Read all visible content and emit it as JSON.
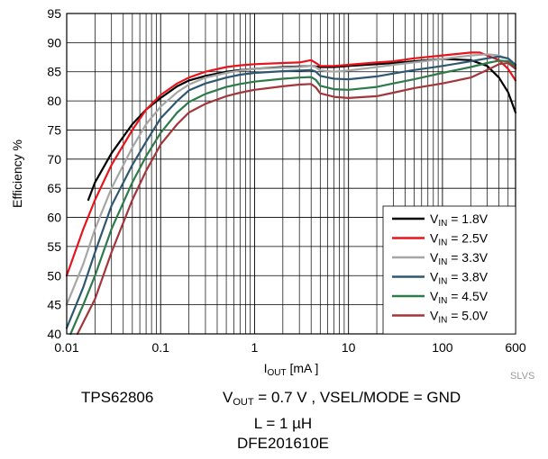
{
  "chart_data": {
    "type": "line",
    "xscale": "log",
    "xlim": [
      0.01,
      600
    ],
    "ylim": [
      40,
      95
    ],
    "grid": true,
    "legend_position": "bottom-right",
    "xlabel": {
      "main": "I",
      "sub": "OUT",
      "rest": " [mA ]"
    },
    "ylabel": "Efficiency %",
    "x_ticks": [
      {
        "value": 0.01,
        "label": "0.01"
      },
      {
        "value": 0.1,
        "label": "0.1"
      },
      {
        "value": 1,
        "label": "1"
      },
      {
        "value": 10,
        "label": "10"
      },
      {
        "value": 100,
        "label": "100"
      },
      {
        "value": 600,
        "label": "600"
      }
    ],
    "y_ticks": [
      40,
      45,
      50,
      55,
      60,
      65,
      70,
      75,
      80,
      85,
      90,
      95
    ],
    "series": [
      {
        "name": "1.8V",
        "label_main": "V",
        "label_sub": "IN",
        "label_rest": " = 1.8V",
        "color": "#000000",
        "x": [
          0.017,
          0.02,
          0.03,
          0.05,
          0.07,
          0.1,
          0.15,
          0.2,
          0.3,
          0.5,
          0.7,
          1,
          2,
          3,
          4,
          4.5,
          5,
          7,
          10,
          20,
          30,
          50,
          100,
          200,
          300,
          400,
          500,
          600
        ],
        "y": [
          63,
          66,
          71,
          76,
          78.5,
          80.5,
          82.5,
          83.5,
          84.3,
          85,
          85.3,
          85.5,
          85.8,
          85.9,
          86,
          85.9,
          85.8,
          85.8,
          86,
          86.3,
          86.5,
          86.8,
          87.2,
          87,
          86,
          84,
          81.5,
          78
        ]
      },
      {
        "name": "2.5V",
        "label_main": "V",
        "label_sub": "IN",
        "label_rest": " = 2.5V",
        "color": "#e8141c",
        "x": [
          0.01,
          0.015,
          0.02,
          0.03,
          0.05,
          0.07,
          0.1,
          0.15,
          0.2,
          0.3,
          0.5,
          0.7,
          1,
          2,
          3,
          4,
          4.5,
          5,
          7,
          10,
          20,
          30,
          50,
          100,
          200,
          250,
          300,
          400,
          500,
          600
        ],
        "y": [
          50,
          58,
          63,
          69,
          75,
          78.5,
          81,
          83,
          84,
          85,
          85.8,
          86.1,
          86.3,
          86.5,
          86.6,
          87,
          86.5,
          86,
          86,
          86.2,
          86.6,
          86.8,
          87.3,
          87.8,
          88.3,
          88.3,
          87.8,
          87,
          85.5,
          83.5
        ]
      },
      {
        "name": "3.3V",
        "label_main": "V",
        "label_sub": "IN",
        "label_rest": " = 3.3V",
        "color": "#a6a6a6",
        "x": [
          0.01,
          0.015,
          0.02,
          0.03,
          0.05,
          0.07,
          0.1,
          0.15,
          0.2,
          0.3,
          0.5,
          0.7,
          1,
          2,
          3,
          4,
          4.5,
          5,
          7,
          10,
          20,
          30,
          50,
          100,
          200,
          300,
          400,
          500,
          600
        ],
        "y": [
          45,
          52,
          58,
          65,
          72,
          76,
          79,
          81.5,
          82.8,
          84,
          84.8,
          85.2,
          85.5,
          85.7,
          85.8,
          86,
          85.8,
          85.2,
          85,
          85.2,
          85.8,
          86.2,
          86.6,
          87.2,
          87.8,
          88,
          87.8,
          87.2,
          86
        ]
      },
      {
        "name": "3.8V",
        "label_main": "V",
        "label_sub": "IN",
        "label_rest": " = 3.8V",
        "color": "#2e5872",
        "x": [
          0.01,
          0.015,
          0.02,
          0.03,
          0.05,
          0.07,
          0.1,
          0.15,
          0.2,
          0.3,
          0.5,
          0.7,
          1,
          2,
          3,
          4,
          4.5,
          5,
          7,
          10,
          20,
          30,
          50,
          100,
          200,
          300,
          400,
          500,
          600
        ],
        "y": [
          41,
          48,
          54,
          62,
          69,
          73,
          77,
          80,
          81.8,
          83,
          84,
          84.5,
          84.8,
          85.1,
          85.2,
          85.3,
          85,
          84.3,
          83.8,
          83.7,
          84.2,
          84.7,
          85.3,
          86,
          86.8,
          87.3,
          87.6,
          87.3,
          86.2
        ]
      },
      {
        "name": "4.5V",
        "label_main": "V",
        "label_sub": "IN",
        "label_rest": " = 4.5V",
        "color": "#2d7a4a",
        "x": [
          0.011,
          0.015,
          0.02,
          0.03,
          0.05,
          0.07,
          0.1,
          0.15,
          0.2,
          0.3,
          0.5,
          0.7,
          1,
          2,
          3,
          4,
          4.5,
          5,
          7,
          10,
          20,
          30,
          50,
          100,
          200,
          300,
          400,
          500,
          600
        ],
        "y": [
          40,
          45,
          50,
          58,
          66,
          70.5,
          74.5,
          78,
          79.8,
          81.2,
          82.4,
          82.9,
          83.3,
          83.8,
          84,
          84.1,
          83.6,
          82.6,
          82,
          81.9,
          82.4,
          83,
          83.7,
          84.8,
          85.8,
          86.5,
          86.9,
          86.8,
          85.8
        ]
      },
      {
        "name": "5.0V",
        "label_main": "V",
        "label_sub": "IN",
        "label_rest": " = 5.0V",
        "color": "#a3363b",
        "x": [
          0.013,
          0.015,
          0.02,
          0.03,
          0.05,
          0.07,
          0.1,
          0.15,
          0.2,
          0.3,
          0.5,
          0.7,
          1,
          2,
          3,
          4,
          4.5,
          5,
          7,
          10,
          20,
          30,
          50,
          100,
          200,
          300,
          400,
          500,
          600
        ],
        "y": [
          40,
          42,
          46,
          54,
          63,
          68,
          72.5,
          76,
          78,
          79.5,
          80.8,
          81.4,
          81.9,
          82.5,
          82.8,
          82.9,
          82.3,
          81.3,
          80.7,
          80.5,
          80.8,
          81.4,
          82.2,
          83,
          84,
          85.3,
          86.3,
          86.5,
          85.5
        ]
      }
    ]
  },
  "footer": {
    "reference": "SLVS",
    "device": "TPS62806",
    "vout_main": "V",
    "vout_sub": "OUT",
    "vout_rest": " = 0.7 V , VSEL/MODE = GND",
    "inductor": "L = 1 µH",
    "part": "DFE201610E"
  }
}
